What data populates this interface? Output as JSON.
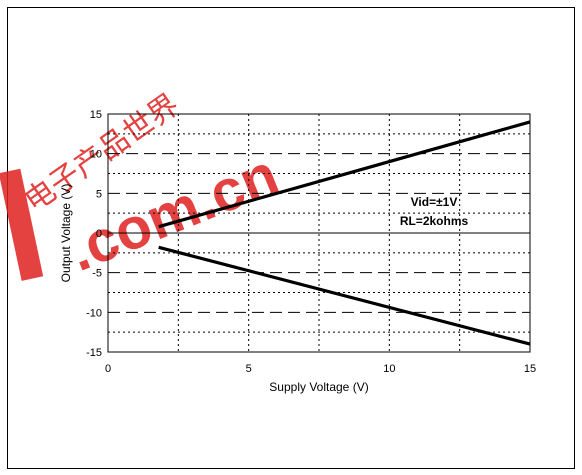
{
  "chart_data": {
    "type": "line",
    "title": "",
    "xlabel": "Supply Voltage  (V)",
    "ylabel": "Output Voltage  (V)",
    "xlim": [
      0,
      15
    ],
    "ylim": [
      -15,
      15
    ],
    "x_ticks": [
      "0",
      "5",
      "10",
      "15"
    ],
    "y_ticks": [
      "15",
      "10",
      "5",
      "0",
      "-5",
      "-10",
      "-15"
    ],
    "grid": true,
    "series": [
      {
        "x": [
          1.8,
          15
        ],
        "y": [
          0.8,
          14
        ]
      },
      {
        "x": [
          1.8,
          15
        ],
        "y": [
          -1.8,
          -14
        ]
      }
    ],
    "annotations": [
      "Vid=±1V",
      "RL=2kohms"
    ]
  },
  "watermark": {
    "text": ".com.cn",
    "chinese": "电子产品世界",
    "color": "#e02020"
  }
}
